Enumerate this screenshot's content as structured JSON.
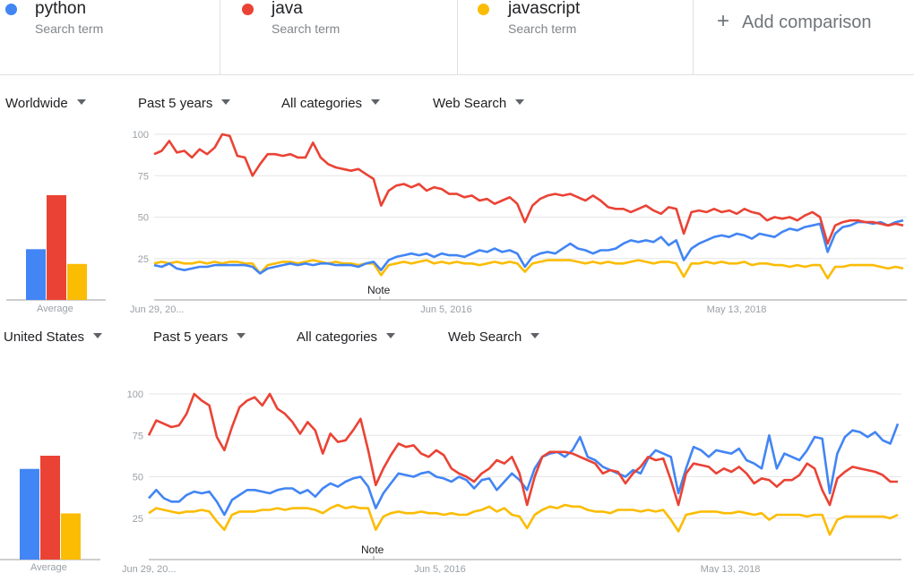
{
  "terms": [
    {
      "name": "python",
      "subtitle": "Search term",
      "color": "#4285f4"
    },
    {
      "name": "java",
      "subtitle": "Search term",
      "color": "#ea4335"
    },
    {
      "name": "javascript",
      "subtitle": "Search term",
      "color": "#fbbc04"
    }
  ],
  "add_comparison": {
    "icon": "plus-icon",
    "label": "Add comparison"
  },
  "panels": [
    {
      "filters": {
        "region": "Worldwide",
        "time": "Past 5 years",
        "category": "All categories",
        "property": "Web Search"
      },
      "average_label": "Average",
      "note_label": "Note"
    },
    {
      "filters": {
        "region": "United States",
        "time": "Past 5 years",
        "category": "All categories",
        "property": "Web Search"
      },
      "average_label": "Average",
      "note_label": "Note"
    }
  ],
  "chart_data": [
    {
      "type": "bar",
      "title": "",
      "categories": [
        "python",
        "java",
        "javascript"
      ],
      "values": [
        31,
        64,
        22
      ],
      "xlabel": "Average",
      "colors": [
        "#4285f4",
        "#ea4335",
        "#fbbc04"
      ]
    },
    {
      "type": "line",
      "yticks": [
        "100",
        "75",
        "50",
        "25"
      ],
      "ylim": [
        0,
        100
      ],
      "xtick_labels": [
        "Jun 29, 20...",
        "Jun 5, 2016",
        "May 13, 2018"
      ],
      "grid": true,
      "series": [
        {
          "name": "python",
          "color": "#4285f4",
          "values": [
            21,
            20,
            22,
            19,
            18,
            19,
            20,
            20,
            21,
            21,
            21,
            21,
            21,
            20,
            16,
            19,
            20,
            21,
            22,
            21,
            22,
            21,
            22,
            22,
            21,
            21,
            21,
            20,
            22,
            23,
            18,
            24,
            26,
            27,
            28,
            27,
            28,
            26,
            28,
            27,
            27,
            26,
            28,
            30,
            29,
            31,
            29,
            30,
            28,
            20,
            26,
            28,
            29,
            28,
            31,
            34,
            31,
            30,
            28,
            30,
            30,
            31,
            34,
            36,
            35,
            36,
            35,
            38,
            33,
            36,
            24,
            31,
            34,
            36,
            38,
            39,
            38,
            40,
            39,
            37,
            40,
            39,
            38,
            41,
            43,
            42,
            44,
            45,
            46,
            29,
            40,
            44,
            45,
            47,
            47,
            46,
            47,
            45,
            47,
            48
          ]
        },
        {
          "name": "java",
          "color": "#ea4335",
          "values": [
            88,
            90,
            96,
            89,
            90,
            86,
            91,
            88,
            92,
            100,
            99,
            87,
            86,
            75,
            82,
            88,
            88,
            87,
            88,
            86,
            86,
            95,
            86,
            82,
            80,
            79,
            78,
            79,
            76,
            73,
            57,
            66,
            69,
            70,
            68,
            70,
            66,
            68,
            67,
            64,
            64,
            62,
            63,
            60,
            61,
            58,
            60,
            62,
            58,
            47,
            57,
            61,
            63,
            64,
            63,
            64,
            62,
            60,
            63,
            60,
            56,
            55,
            55,
            53,
            55,
            57,
            54,
            52,
            56,
            55,
            40,
            53,
            54,
            53,
            55,
            53,
            54,
            52,
            55,
            53,
            52,
            48,
            50,
            49,
            50,
            48,
            51,
            53,
            50,
            34,
            45,
            47,
            48,
            48,
            47,
            47,
            46,
            45,
            46,
            45
          ]
        },
        {
          "name": "javascript",
          "color": "#fbbc04",
          "values": [
            22,
            23,
            22,
            23,
            22,
            22,
            23,
            22,
            23,
            22,
            23,
            23,
            22,
            22,
            16,
            21,
            22,
            23,
            23,
            22,
            23,
            24,
            23,
            22,
            23,
            22,
            22,
            21,
            22,
            22,
            15,
            21,
            22,
            23,
            22,
            23,
            24,
            22,
            23,
            22,
            23,
            22,
            22,
            21,
            22,
            23,
            22,
            23,
            22,
            17,
            22,
            23,
            24,
            24,
            24,
            24,
            23,
            22,
            23,
            22,
            23,
            22,
            22,
            23,
            24,
            23,
            22,
            23,
            23,
            22,
            14,
            22,
            22,
            23,
            22,
            23,
            22,
            22,
            23,
            21,
            22,
            22,
            21,
            21,
            20,
            21,
            20,
            21,
            21,
            13,
            20,
            20,
            21,
            21,
            21,
            21,
            20,
            19,
            20,
            19
          ]
        }
      ]
    },
    {
      "type": "bar",
      "title": "",
      "categories": [
        "python",
        "java",
        "javascript"
      ],
      "values": [
        55,
        63,
        28
      ],
      "xlabel": "Average",
      "colors": [
        "#4285f4",
        "#ea4335",
        "#fbbc04"
      ]
    },
    {
      "type": "line",
      "yticks": [
        "100",
        "75",
        "50",
        "25"
      ],
      "ylim": [
        0,
        100
      ],
      "xtick_labels": [
        "Jun 29, 20...",
        "Jun 5, 2016",
        "May 13, 2018"
      ],
      "grid": true,
      "series": [
        {
          "name": "python",
          "color": "#4285f4",
          "values": [
            37,
            42,
            37,
            35,
            35,
            39,
            41,
            40,
            41,
            35,
            27,
            36,
            39,
            42,
            42,
            41,
            40,
            42,
            43,
            43,
            40,
            42,
            38,
            43,
            46,
            44,
            47,
            49,
            50,
            44,
            31,
            40,
            46,
            52,
            51,
            50,
            52,
            53,
            50,
            49,
            47,
            50,
            48,
            43,
            48,
            49,
            42,
            47,
            52,
            48,
            42,
            55,
            62,
            64,
            65,
            62,
            66,
            74,
            62,
            60,
            56,
            54,
            52,
            50,
            54,
            52,
            61,
            66,
            64,
            62,
            40,
            55,
            68,
            66,
            62,
            66,
            65,
            64,
            67,
            60,
            58,
            55,
            75,
            55,
            64,
            62,
            60,
            66,
            74,
            73,
            40,
            64,
            74,
            78,
            77,
            74,
            77,
            72,
            70,
            82
          ]
        },
        {
          "name": "java",
          "color": "#ea4335",
          "values": [
            75,
            84,
            82,
            80,
            81,
            88,
            100,
            96,
            93,
            74,
            66,
            80,
            92,
            96,
            98,
            93,
            100,
            91,
            88,
            83,
            76,
            83,
            78,
            64,
            76,
            71,
            72,
            78,
            85,
            66,
            45,
            55,
            63,
            70,
            68,
            69,
            64,
            62,
            66,
            63,
            55,
            52,
            50,
            47,
            52,
            55,
            60,
            58,
            62,
            52,
            33,
            50,
            62,
            65,
            65,
            65,
            64,
            62,
            60,
            58,
            52,
            54,
            53,
            46,
            52,
            56,
            62,
            60,
            61,
            48,
            33,
            52,
            58,
            57,
            56,
            52,
            55,
            53,
            56,
            52,
            46,
            49,
            48,
            44,
            48,
            48,
            51,
            58,
            55,
            42,
            33,
            49,
            53,
            56,
            55,
            54,
            53,
            51,
            47,
            47
          ]
        },
        {
          "name": "javascript",
          "color": "#fbbc04",
          "values": [
            28,
            31,
            30,
            29,
            28,
            29,
            29,
            30,
            29,
            23,
            18,
            27,
            29,
            29,
            29,
            30,
            30,
            31,
            30,
            31,
            31,
            31,
            30,
            28,
            31,
            33,
            31,
            32,
            31,
            31,
            18,
            26,
            28,
            29,
            28,
            28,
            29,
            28,
            28,
            27,
            28,
            27,
            27,
            29,
            30,
            32,
            29,
            31,
            27,
            26,
            19,
            27,
            30,
            32,
            31,
            33,
            32,
            32,
            30,
            29,
            29,
            28,
            30,
            30,
            30,
            29,
            30,
            29,
            30,
            24,
            17,
            27,
            28,
            29,
            29,
            29,
            28,
            28,
            29,
            28,
            27,
            28,
            24,
            27,
            27,
            27,
            27,
            26,
            27,
            27,
            15,
            24,
            26,
            26,
            26,
            26,
            26,
            26,
            25,
            27
          ]
        }
      ]
    }
  ]
}
